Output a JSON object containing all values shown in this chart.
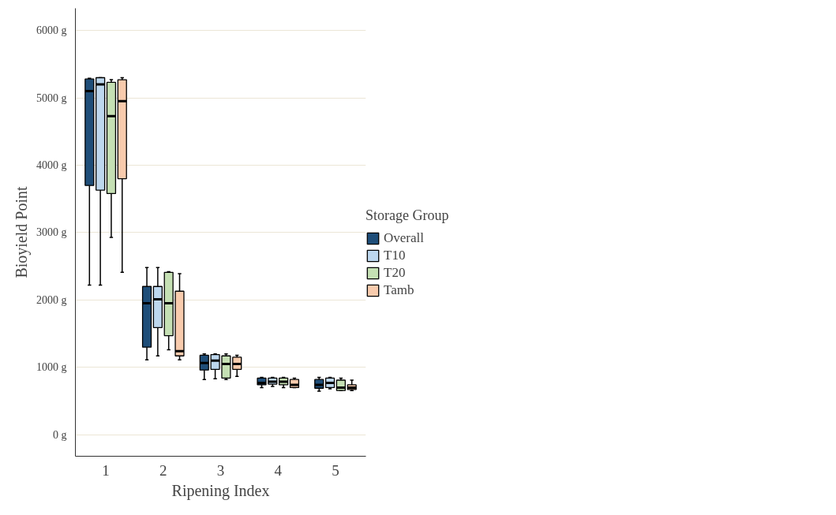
{
  "chart_data": {
    "type": "box",
    "xlabel": "Ripening Index",
    "ylabel": "Bioyield Point",
    "legend_title": "Storage Group",
    "categories": [
      "1",
      "2",
      "3",
      "4",
      "5"
    ],
    "ylim": [
      -320,
      6330
    ],
    "yticks": [
      {
        "value": 0,
        "label": "0 g"
      },
      {
        "value": 1000,
        "label": "1000 g"
      },
      {
        "value": 2000,
        "label": "2000 g"
      },
      {
        "value": 3000,
        "label": "3000 g"
      },
      {
        "value": 4000,
        "label": "4000 g"
      },
      {
        "value": 5000,
        "label": "5000 g"
      },
      {
        "value": 6000,
        "label": "6000 g"
      }
    ],
    "grid": "y",
    "legend": "right",
    "series": [
      {
        "name": "Overall",
        "color": "#1f4e79",
        "boxes": [
          {
            "low": 2220,
            "q1": 3700,
            "median": 5100,
            "q3": 5280,
            "high": 5290
          },
          {
            "low": 1110,
            "q1": 1300,
            "median": 1950,
            "q3": 2200,
            "high": 2480
          },
          {
            "low": 820,
            "q1": 960,
            "median": 1065,
            "q3": 1180,
            "high": 1200
          },
          {
            "low": 700,
            "q1": 740,
            "median": 770,
            "q3": 840,
            "high": 850
          },
          {
            "low": 645,
            "q1": 690,
            "median": 740,
            "q3": 820,
            "high": 850
          }
        ]
      },
      {
        "name": "T10",
        "color": "#bdd7ee",
        "boxes": [
          {
            "low": 2220,
            "q1": 3630,
            "median": 5200,
            "q3": 5300,
            "high": 5300
          },
          {
            "low": 1170,
            "q1": 1590,
            "median": 2010,
            "q3": 2200,
            "high": 2480
          },
          {
            "low": 830,
            "q1": 970,
            "median": 1100,
            "q3": 1190,
            "high": 1200
          },
          {
            "low": 715,
            "q1": 750,
            "median": 785,
            "q3": 840,
            "high": 850
          },
          {
            "low": 680,
            "q1": 700,
            "median": 770,
            "q3": 840,
            "high": 850
          }
        ]
      },
      {
        "name": "T20",
        "color": "#c5e0b4",
        "boxes": [
          {
            "low": 2930,
            "q1": 3580,
            "median": 4730,
            "q3": 5230,
            "high": 5270
          },
          {
            "low": 1260,
            "q1": 1470,
            "median": 1950,
            "q3": 2410,
            "high": 2420
          },
          {
            "low": 820,
            "q1": 840,
            "median": 1050,
            "q3": 1170,
            "high": 1200
          },
          {
            "low": 700,
            "q1": 740,
            "median": 785,
            "q3": 840,
            "high": 850
          },
          {
            "low": 655,
            "q1": 655,
            "median": 700,
            "q3": 810,
            "high": 840
          }
        ]
      },
      {
        "name": "Tamb",
        "color": "#f8cbad",
        "boxes": [
          {
            "low": 2410,
            "q1": 3800,
            "median": 4950,
            "q3": 5270,
            "high": 5300
          },
          {
            "low": 1110,
            "q1": 1170,
            "median": 1240,
            "q3": 2130,
            "high": 2390
          },
          {
            "low": 865,
            "q1": 970,
            "median": 1050,
            "q3": 1150,
            "high": 1180
          },
          {
            "low": 700,
            "q1": 700,
            "median": 740,
            "q3": 820,
            "high": 840
          },
          {
            "low": 655,
            "q1": 670,
            "median": 700,
            "q3": 740,
            "high": 810
          }
        ]
      }
    ]
  }
}
